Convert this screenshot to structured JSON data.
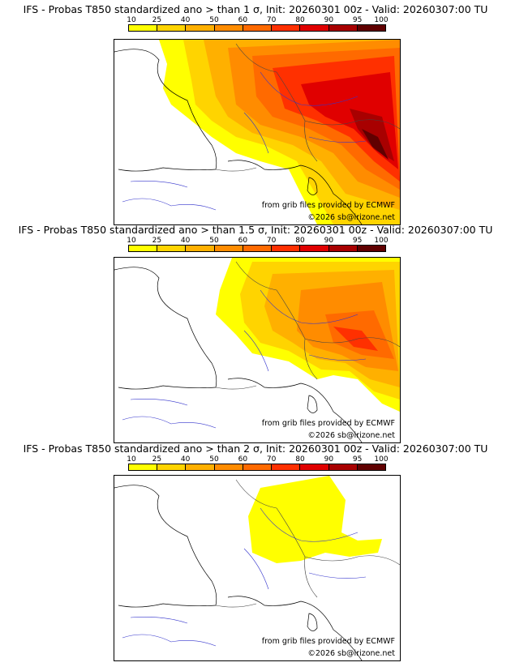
{
  "panels": [
    {
      "title": "IFS - Probas T850  standardized ano > than 1 σ, Init: 20260301 00z - Valid: 20260307:00 TU"
    },
    {
      "title": "IFS - Probas T850  standardized ano > than 1.5 σ, Init: 20260301 00z - Valid: 20260307:00 TU"
    },
    {
      "title": "IFS - Probas T850  standardized ano > than 2 σ, Init: 20260301 00z - Valid: 20260307:00 TU"
    }
  ],
  "scale": {
    "ticks": [
      "10",
      "25",
      "40",
      "50",
      "60",
      "70",
      "80",
      "90",
      "95",
      "100"
    ],
    "colors": [
      "#ffff00",
      "#ffd400",
      "#ffb000",
      "#ff8c00",
      "#ff6a00",
      "#ff3000",
      "#e00000",
      "#a80000",
      "#600000"
    ]
  },
  "credits": {
    "source": "from grib files provided by ECMWF",
    "copyright": "©2026 sb@irizone.net"
  }
}
